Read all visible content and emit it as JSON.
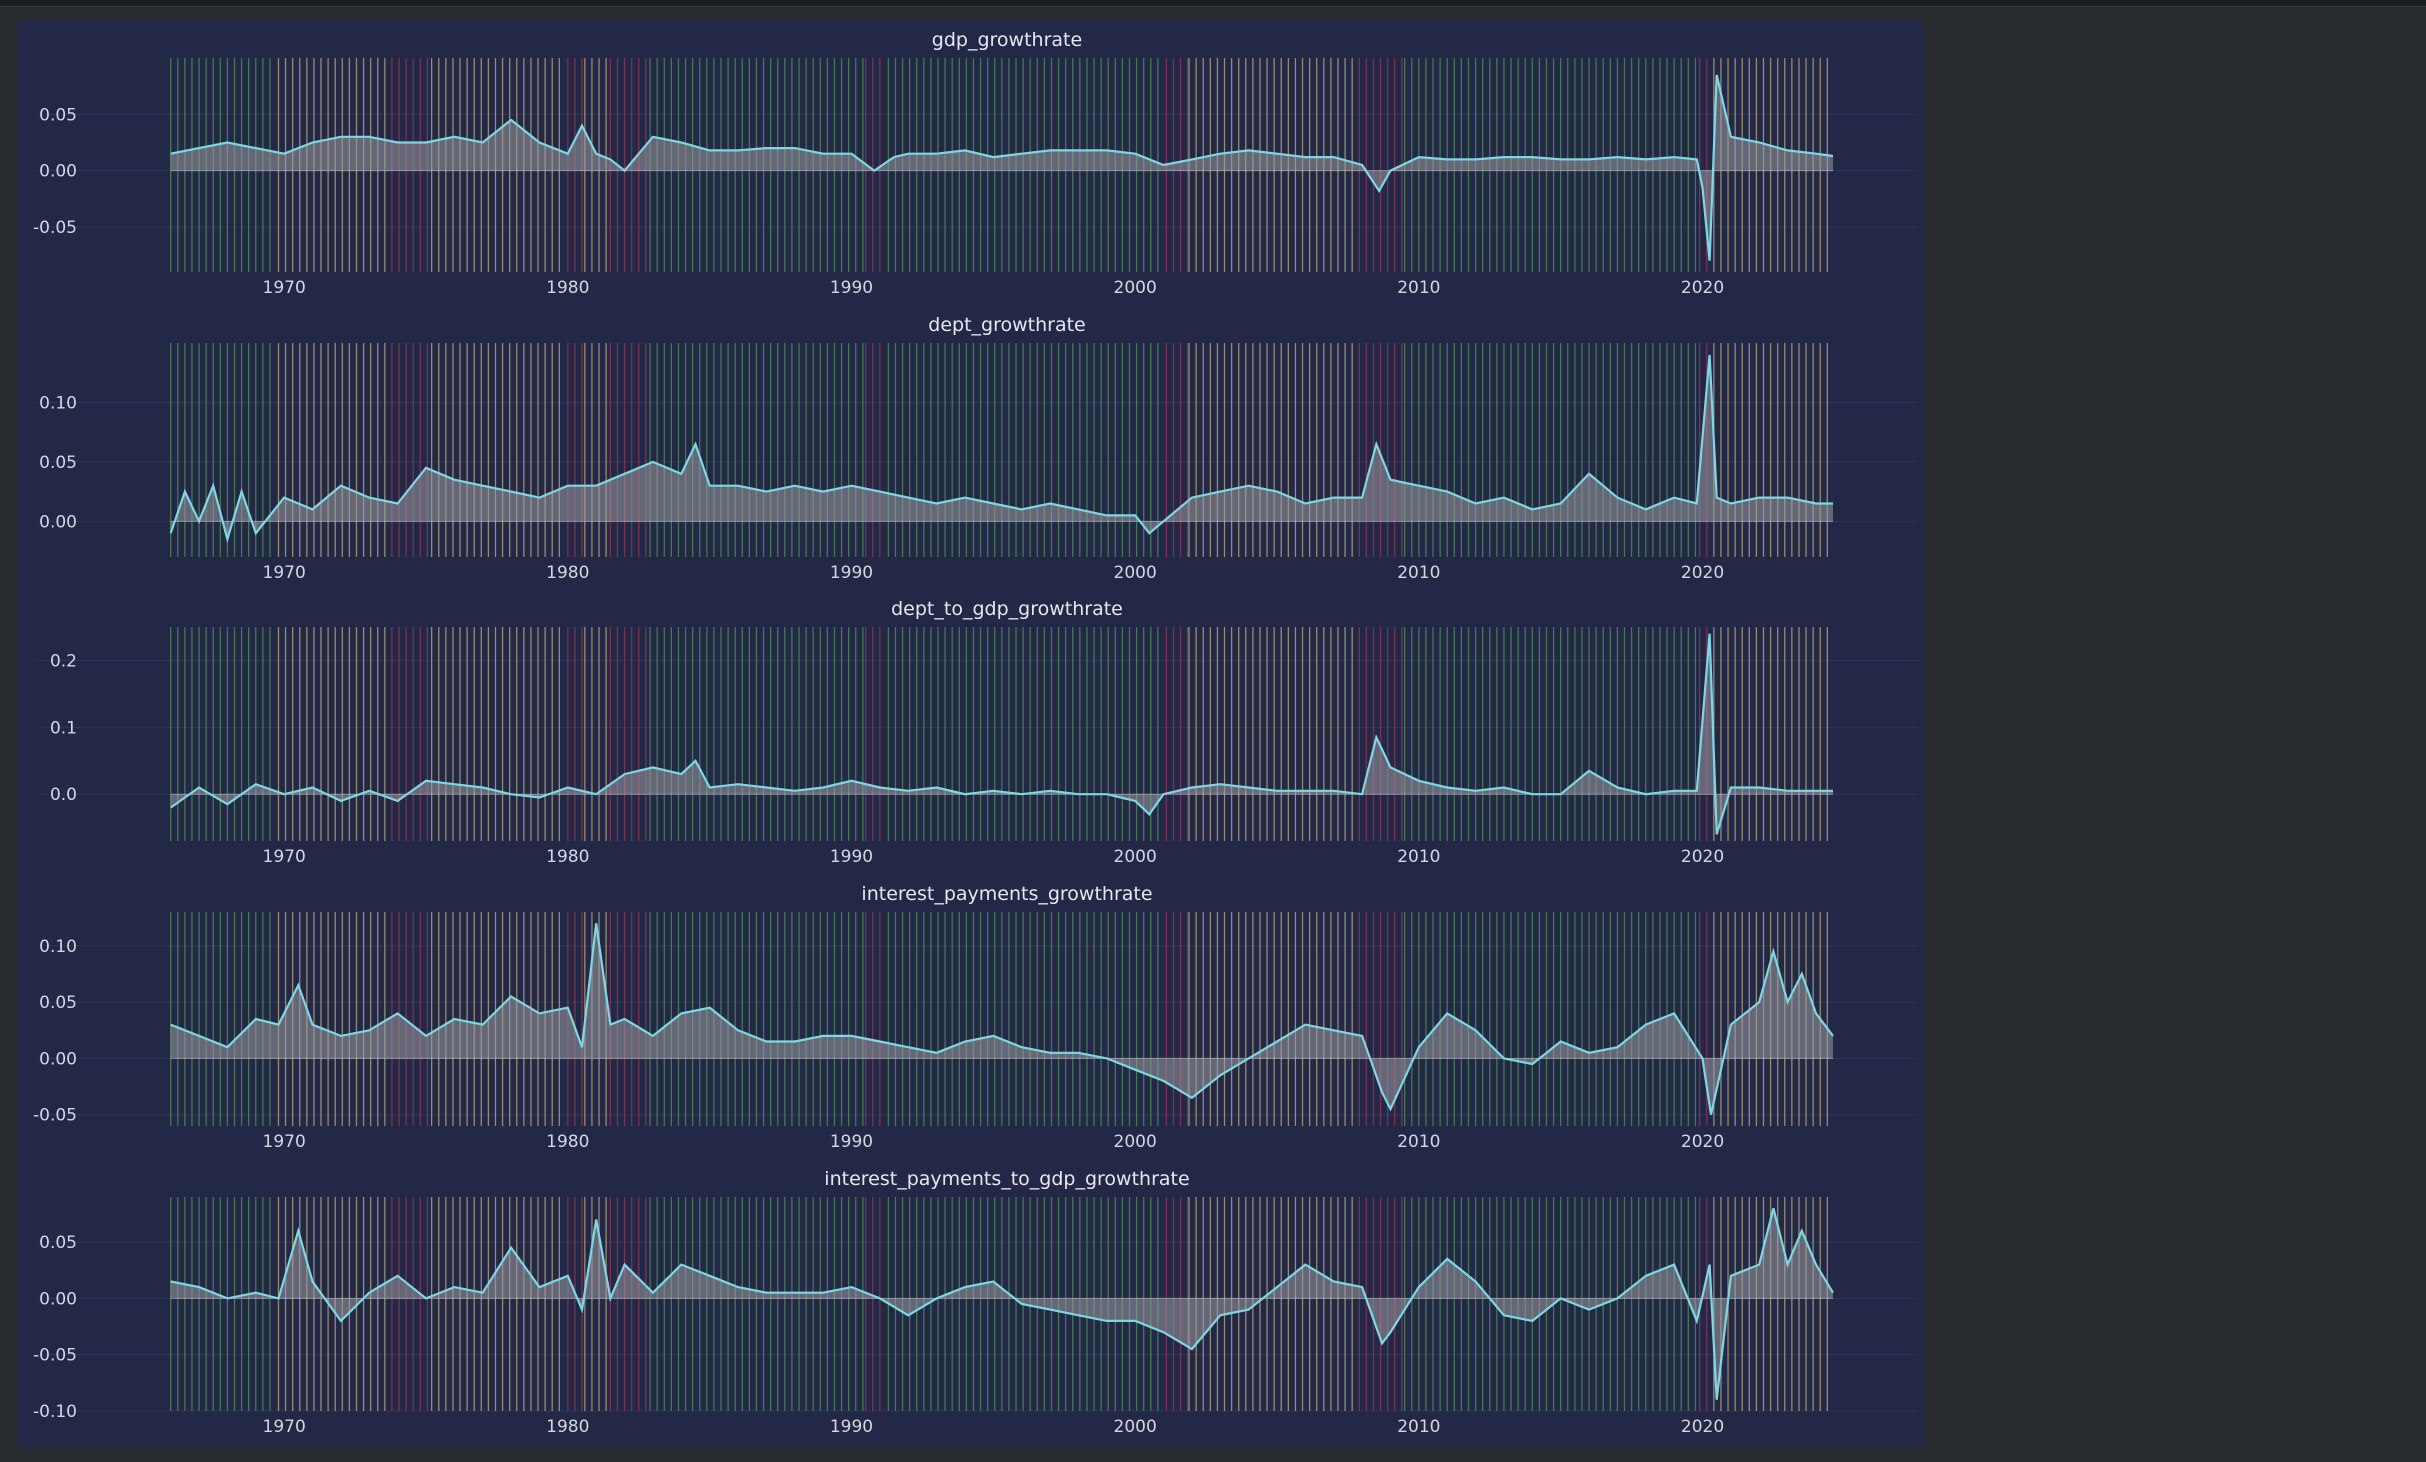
{
  "colors": {
    "background": "#272a2f",
    "figure_background": "#222845",
    "line": "#7fd6e4",
    "fill": "#9a9aa3",
    "band_expansion": "#5fae5f",
    "band_early": "#e6d08c",
    "band_recession": "#c0405f",
    "grid": "#2e3556"
  },
  "chart_data": [
    {
      "type": "area",
      "title": "gdp_growthrate",
      "x_range": [
        1965.8,
        2024.6
      ],
      "xticks": [
        "1970",
        "1980",
        "1990",
        "2000",
        "2010",
        "2020"
      ],
      "ylim": [
        -0.09,
        0.1
      ],
      "yticks": [
        "0.05",
        "0.00",
        "-0.05"
      ],
      "x": [
        1966.0,
        1967.0,
        1968.0,
        1969.0,
        1970.0,
        1971.0,
        1972.0,
        1973.0,
        1974.0,
        1975.0,
        1976.0,
        1977.0,
        1978.0,
        1979.0,
        1980.0,
        1980.5,
        1981.0,
        1981.5,
        1982.0,
        1983.0,
        1984.0,
        1985.0,
        1986.0,
        1987.0,
        1988.0,
        1989.0,
        1990.0,
        1990.8,
        1991.5,
        1992.0,
        1993.0,
        1994.0,
        1995.0,
        1996.0,
        1997.0,
        1998.0,
        1999.0,
        2000.0,
        2001.0,
        2002.0,
        2003.0,
        2004.0,
        2005.0,
        2006.0,
        2007.0,
        2008.0,
        2008.6,
        2009.0,
        2010.0,
        2011.0,
        2012.0,
        2013.0,
        2014.0,
        2015.0,
        2016.0,
        2017.0,
        2018.0,
        2019.0,
        2019.8,
        2020.0,
        2020.25,
        2020.5,
        2021.0,
        2022.0,
        2023.0,
        2024.0,
        2024.6
      ],
      "y": [
        0.015,
        0.02,
        0.025,
        0.02,
        0.015,
        0.025,
        0.03,
        0.03,
        0.025,
        0.025,
        0.03,
        0.025,
        0.045,
        0.025,
        0.015,
        0.04,
        0.015,
        0.01,
        0.0,
        0.03,
        0.025,
        0.018,
        0.018,
        0.02,
        0.02,
        0.015,
        0.015,
        0.0,
        0.012,
        0.015,
        0.015,
        0.018,
        0.012,
        0.015,
        0.018,
        0.018,
        0.018,
        0.015,
        0.005,
        0.01,
        0.015,
        0.018,
        0.015,
        0.012,
        0.012,
        0.005,
        -0.018,
        0.0,
        0.012,
        0.01,
        0.01,
        0.012,
        0.012,
        0.01,
        0.01,
        0.012,
        0.01,
        0.012,
        0.01,
        -0.015,
        -0.08,
        0.085,
        0.03,
        0.025,
        0.018,
        0.015,
        0.013
      ]
    },
    {
      "type": "area",
      "title": "dept_growthrate",
      "x_range": [
        1965.8,
        2024.6
      ],
      "xticks": [
        "1970",
        "1980",
        "1990",
        "2000",
        "2010",
        "2020"
      ],
      "ylim": [
        -0.03,
        0.15
      ],
      "yticks": [
        "0.10",
        "0.05",
        "0.00"
      ],
      "x": [
        1966.0,
        1966.5,
        1967.0,
        1967.5,
        1968.0,
        1968.5,
        1969.0,
        1970.0,
        1971.0,
        1972.0,
        1973.0,
        1974.0,
        1975.0,
        1976.0,
        1977.0,
        1978.0,
        1979.0,
        1980.0,
        1981.0,
        1982.0,
        1983.0,
        1984.0,
        1984.5,
        1985.0,
        1986.0,
        1987.0,
        1988.0,
        1989.0,
        1990.0,
        1991.0,
        1992.0,
        1993.0,
        1994.0,
        1995.0,
        1996.0,
        1997.0,
        1998.0,
        1999.0,
        2000.0,
        2000.5,
        2001.0,
        2002.0,
        2003.0,
        2004.0,
        2005.0,
        2006.0,
        2007.0,
        2008.0,
        2008.5,
        2009.0,
        2010.0,
        2011.0,
        2012.0,
        2013.0,
        2014.0,
        2015.0,
        2016.0,
        2017.0,
        2018.0,
        2019.0,
        2019.8,
        2020.25,
        2020.5,
        2021.0,
        2022.0,
        2023.0,
        2024.0,
        2024.6
      ],
      "y": [
        -0.01,
        0.025,
        0.0,
        0.03,
        -0.015,
        0.025,
        -0.01,
        0.02,
        0.01,
        0.03,
        0.02,
        0.015,
        0.045,
        0.035,
        0.03,
        0.025,
        0.02,
        0.03,
        0.03,
        0.04,
        0.05,
        0.04,
        0.065,
        0.03,
        0.03,
        0.025,
        0.03,
        0.025,
        0.03,
        0.025,
        0.02,
        0.015,
        0.02,
        0.015,
        0.01,
        0.015,
        0.01,
        0.005,
        0.005,
        -0.01,
        0.0,
        0.02,
        0.025,
        0.03,
        0.025,
        0.015,
        0.02,
        0.02,
        0.065,
        0.035,
        0.03,
        0.025,
        0.015,
        0.02,
        0.01,
        0.015,
        0.04,
        0.02,
        0.01,
        0.02,
        0.015,
        0.14,
        0.02,
        0.015,
        0.02,
        0.02,
        0.015,
        0.015
      ]
    },
    {
      "type": "area",
      "title": "dept_to_gdp_growthrate",
      "x_range": [
        1965.8,
        2024.6
      ],
      "xticks": [
        "1970",
        "1980",
        "1990",
        "2000",
        "2010",
        "2020"
      ],
      "ylim": [
        -0.07,
        0.25
      ],
      "yticks": [
        "0.2",
        "0.1",
        "0.0"
      ],
      "x": [
        1966.0,
        1967.0,
        1968.0,
        1969.0,
        1970.0,
        1971.0,
        1972.0,
        1973.0,
        1974.0,
        1975.0,
        1976.0,
        1977.0,
        1978.0,
        1979.0,
        1980.0,
        1981.0,
        1982.0,
        1983.0,
        1984.0,
        1984.5,
        1985.0,
        1986.0,
        1987.0,
        1988.0,
        1989.0,
        1990.0,
        1991.0,
        1992.0,
        1993.0,
        1994.0,
        1995.0,
        1996.0,
        1997.0,
        1998.0,
        1999.0,
        2000.0,
        2000.5,
        2001.0,
        2002.0,
        2003.0,
        2004.0,
        2005.0,
        2006.0,
        2007.0,
        2008.0,
        2008.5,
        2009.0,
        2010.0,
        2011.0,
        2012.0,
        2013.0,
        2014.0,
        2015.0,
        2016.0,
        2017.0,
        2018.0,
        2019.0,
        2019.8,
        2020.25,
        2020.5,
        2021.0,
        2022.0,
        2023.0,
        2024.0,
        2024.6
      ],
      "y": [
        -0.02,
        0.01,
        -0.015,
        0.015,
        0.0,
        0.01,
        -0.01,
        0.005,
        -0.01,
        0.02,
        0.015,
        0.01,
        0.0,
        -0.005,
        0.01,
        0.0,
        0.03,
        0.04,
        0.03,
        0.05,
        0.01,
        0.015,
        0.01,
        0.005,
        0.01,
        0.02,
        0.01,
        0.005,
        0.01,
        0.0,
        0.005,
        0.0,
        0.005,
        0.0,
        0.0,
        -0.01,
        -0.03,
        0.0,
        0.01,
        0.015,
        0.01,
        0.005,
        0.005,
        0.005,
        0.0,
        0.085,
        0.04,
        0.02,
        0.01,
        0.005,
        0.01,
        0.0,
        0.0,
        0.035,
        0.01,
        0.0,
        0.005,
        0.005,
        0.24,
        -0.06,
        0.01,
        0.01,
        0.005,
        0.005,
        0.005
      ]
    },
    {
      "type": "area",
      "title": "interest_payments_growthrate",
      "x_range": [
        1965.8,
        2024.6
      ],
      "xticks": [
        "1970",
        "1980",
        "1990",
        "2000",
        "2010",
        "2020"
      ],
      "ylim": [
        -0.06,
        0.13
      ],
      "yticks": [
        "0.10",
        "0.05",
        "0.00",
        "-0.05"
      ],
      "x": [
        1966.0,
        1967.0,
        1968.0,
        1969.0,
        1969.8,
        1970.5,
        1971.0,
        1972.0,
        1973.0,
        1974.0,
        1975.0,
        1976.0,
        1977.0,
        1978.0,
        1979.0,
        1980.0,
        1980.5,
        1981.0,
        1981.5,
        1982.0,
        1983.0,
        1984.0,
        1985.0,
        1986.0,
        1987.0,
        1988.0,
        1989.0,
        1990.0,
        1991.0,
        1992.0,
        1993.0,
        1994.0,
        1995.0,
        1996.0,
        1997.0,
        1998.0,
        1999.0,
        2000.0,
        2001.0,
        2002.0,
        2003.0,
        2004.0,
        2005.0,
        2006.0,
        2007.0,
        2008.0,
        2008.7,
        2009.0,
        2010.0,
        2011.0,
        2012.0,
        2013.0,
        2014.0,
        2015.0,
        2016.0,
        2017.0,
        2018.0,
        2019.0,
        2020.0,
        2020.3,
        2021.0,
        2022.0,
        2022.5,
        2023.0,
        2023.5,
        2024.0,
        2024.6
      ],
      "y": [
        0.03,
        0.02,
        0.01,
        0.035,
        0.03,
        0.065,
        0.03,
        0.02,
        0.025,
        0.04,
        0.02,
        0.035,
        0.03,
        0.055,
        0.04,
        0.045,
        0.01,
        0.12,
        0.03,
        0.035,
        0.02,
        0.04,
        0.045,
        0.025,
        0.015,
        0.015,
        0.02,
        0.02,
        0.015,
        0.01,
        0.005,
        0.015,
        0.02,
        0.01,
        0.005,
        0.005,
        0.0,
        -0.01,
        -0.02,
        -0.035,
        -0.015,
        0.0,
        0.015,
        0.03,
        0.025,
        0.02,
        -0.03,
        -0.045,
        0.01,
        0.04,
        0.025,
        0.0,
        -0.005,
        0.015,
        0.005,
        0.01,
        0.03,
        0.04,
        0.0,
        -0.05,
        0.03,
        0.05,
        0.095,
        0.05,
        0.075,
        0.04,
        0.02
      ]
    },
    {
      "type": "area",
      "title": "interest_payments_to_gdp_growthrate",
      "x_range": [
        1965.8,
        2024.6
      ],
      "xticks": [
        "1970",
        "1980",
        "1990",
        "2000",
        "2010",
        "2020"
      ],
      "ylim": [
        -0.1,
        0.09
      ],
      "yticks": [
        "0.05",
        "0.00",
        "-0.05",
        "-0.10"
      ],
      "x": [
        1966.0,
        1967.0,
        1968.0,
        1969.0,
        1969.8,
        1970.5,
        1971.0,
        1972.0,
        1973.0,
        1974.0,
        1975.0,
        1976.0,
        1977.0,
        1978.0,
        1979.0,
        1980.0,
        1980.5,
        1981.0,
        1981.5,
        1982.0,
        1983.0,
        1984.0,
        1985.0,
        1986.0,
        1987.0,
        1988.0,
        1989.0,
        1990.0,
        1991.0,
        1992.0,
        1993.0,
        1994.0,
        1995.0,
        1996.0,
        1997.0,
        1998.0,
        1999.0,
        2000.0,
        2001.0,
        2002.0,
        2003.0,
        2004.0,
        2005.0,
        2006.0,
        2007.0,
        2008.0,
        2008.7,
        2009.0,
        2010.0,
        2011.0,
        2012.0,
        2013.0,
        2014.0,
        2015.0,
        2016.0,
        2017.0,
        2018.0,
        2019.0,
        2019.8,
        2020.25,
        2020.5,
        2021.0,
        2022.0,
        2022.5,
        2023.0,
        2023.5,
        2024.0,
        2024.6
      ],
      "y": [
        0.015,
        0.01,
        0.0,
        0.005,
        0.0,
        0.06,
        0.015,
        -0.02,
        0.005,
        0.02,
        0.0,
        0.01,
        0.005,
        0.045,
        0.01,
        0.02,
        -0.01,
        0.07,
        0.0,
        0.03,
        0.005,
        0.03,
        0.02,
        0.01,
        0.005,
        0.005,
        0.005,
        0.01,
        0.0,
        -0.015,
        0.0,
        0.01,
        0.015,
        -0.005,
        -0.01,
        -0.015,
        -0.02,
        -0.02,
        -0.03,
        -0.045,
        -0.015,
        -0.01,
        0.01,
        0.03,
        0.015,
        0.01,
        -0.04,
        -0.03,
        0.01,
        0.035,
        0.015,
        -0.015,
        -0.02,
        0.0,
        -0.01,
        0.0,
        0.02,
        0.03,
        -0.02,
        0.03,
        -0.09,
        0.02,
        0.03,
        0.08,
        0.03,
        0.06,
        0.03,
        0.005
      ]
    }
  ]
}
